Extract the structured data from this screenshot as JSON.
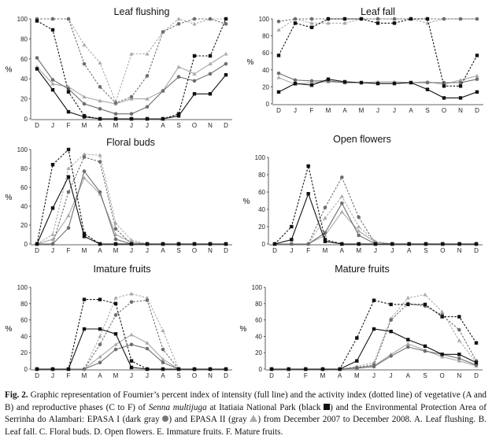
{
  "caption": {
    "fig_label": "Fig. 2.",
    "part1": "Graphic representation of Fournier’s percent index of intensity (full line) and the activity index (dotted line) of vegetative (A and B) and reproductive phases (C to F) of",
    "species": "Senna multijuga",
    "part2": "at Itatiaia National Park (black",
    "part3": ") and the Environmental Protection Area of Serrinha do Alambari: EPASA I (dark gray",
    "part4": ") and EPASA II (gray",
    "part5": ") from December 2007 to December 2008. A. Leaf flushing. B. Leaf fall. C. Floral buds. D. Open flowers. E. Immature fruits. F. Mature fruits."
  },
  "colors": {
    "black_site": "#111111",
    "epasa_i": "#6e6e6e",
    "epasa_ii": "#a8a8a8"
  },
  "chart_data": [
    {
      "type": "line",
      "title": "Leaf flushing",
      "ylabel": "%",
      "ylim": [
        0,
        100
      ],
      "yticks": [
        0,
        20,
        40,
        60,
        80,
        100
      ],
      "categories": [
        "D",
        "J",
        "F",
        "M",
        "A",
        "M",
        "J",
        "J",
        "A",
        "S",
        "O",
        "N",
        "D"
      ],
      "series": [
        {
          "site": "black",
          "kind": "intensity",
          "values": [
            50,
            29,
            7,
            2,
            0,
            0,
            0,
            0,
            0,
            3,
            25,
            25,
            44
          ]
        },
        {
          "site": "black",
          "kind": "activity",
          "values": [
            98,
            89,
            27,
            3,
            0,
            0,
            0,
            0,
            0,
            5,
            63,
            63,
            100
          ]
        },
        {
          "site": "epasa_i",
          "kind": "intensity",
          "values": [
            61,
            39,
            30,
            15,
            10,
            5,
            5,
            12,
            28,
            42,
            38,
            45,
            55
          ]
        },
        {
          "site": "epasa_i",
          "kind": "activity",
          "values": [
            100,
            100,
            100,
            55,
            32,
            16,
            22,
            43,
            87,
            95,
            100,
            100,
            95
          ]
        },
        {
          "site": "epasa_ii",
          "kind": "intensity",
          "values": [
            52,
            35,
            32,
            22,
            18,
            15,
            20,
            20,
            28,
            52,
            45,
            55,
            65
          ]
        },
        {
          "site": "epasa_ii",
          "kind": "activity",
          "values": [
            100,
            100,
            100,
            74,
            56,
            17,
            65,
            65,
            87,
            100,
            95,
            100,
            100
          ]
        }
      ]
    },
    {
      "type": "line",
      "title": "Leaf fall",
      "ylabel": "%",
      "ylim": [
        0,
        100
      ],
      "yticks": [
        0,
        20,
        40,
        60,
        80,
        100
      ],
      "categories": [
        "D",
        "J",
        "F",
        "M",
        "A",
        "M",
        "J",
        "J",
        "A",
        "S",
        "O",
        "N",
        "D"
      ],
      "series": [
        {
          "site": "black",
          "kind": "intensity",
          "values": [
            14,
            24,
            22,
            29,
            26,
            25,
            24,
            24,
            25,
            17,
            7,
            7,
            14
          ]
        },
        {
          "site": "black",
          "kind": "activity",
          "values": [
            57,
            95,
            90,
            100,
            100,
            100,
            95,
            95,
            100,
            100,
            21,
            21,
            57
          ]
        },
        {
          "site": "epasa_i",
          "kind": "intensity",
          "values": [
            36,
            28,
            27,
            27,
            25,
            25,
            24,
            24,
            25,
            25,
            25,
            25,
            29
          ]
        },
        {
          "site": "epasa_i",
          "kind": "activity",
          "values": [
            97,
            100,
            100,
            100,
            100,
            100,
            100,
            100,
            100,
            100,
            100,
            100,
            100
          ]
        },
        {
          "site": "epasa_ii",
          "kind": "intensity",
          "values": [
            31,
            23,
            25,
            26,
            25,
            25,
            26,
            26,
            25,
            26,
            23,
            28,
            33
          ]
        },
        {
          "site": "epasa_ii",
          "kind": "activity",
          "values": [
            87,
            100,
            95,
            95,
            95,
            100,
            100,
            100,
            100,
            95,
            100,
            100,
            100
          ]
        }
      ]
    },
    {
      "type": "line",
      "title": "Floral buds",
      "ylabel": "%",
      "ylim": [
        0,
        100
      ],
      "yticks": [
        0,
        20,
        40,
        60,
        80,
        100
      ],
      "categories": [
        "D",
        "J",
        "F",
        "M",
        "A",
        "M",
        "J",
        "J",
        "A",
        "S",
        "O",
        "N",
        "D"
      ],
      "series": [
        {
          "site": "black",
          "kind": "intensity",
          "values": [
            0,
            38,
            71,
            8,
            0,
            0,
            0,
            0,
            0,
            0,
            0,
            0,
            0
          ]
        },
        {
          "site": "black",
          "kind": "activity",
          "values": [
            0,
            84,
            100,
            11,
            0,
            0,
            0,
            0,
            0,
            0,
            0,
            0,
            0
          ]
        },
        {
          "site": "epasa_i",
          "kind": "intensity",
          "values": [
            0,
            0,
            17,
            77,
            55,
            5,
            0,
            0,
            0,
            0,
            0,
            0,
            0
          ]
        },
        {
          "site": "epasa_i",
          "kind": "activity",
          "values": [
            0,
            0,
            55,
            92,
            87,
            16,
            0,
            0,
            0,
            0,
            0,
            0,
            0
          ]
        },
        {
          "site": "epasa_ii",
          "kind": "intensity",
          "values": [
            0,
            5,
            30,
            70,
            53,
            10,
            2,
            0,
            0,
            0,
            0,
            0,
            0
          ]
        },
        {
          "site": "epasa_ii",
          "kind": "activity",
          "values": [
            0,
            10,
            80,
            95,
            94,
            22,
            4,
            0,
            0,
            0,
            0,
            0,
            0
          ]
        }
      ]
    },
    {
      "type": "line",
      "title": "Open flowers",
      "ylabel": "%",
      "ylim": [
        0,
        100
      ],
      "yticks": [
        0,
        20,
        40,
        60,
        80,
        100
      ],
      "categories": [
        "D",
        "J",
        "F",
        "M",
        "A",
        "M",
        "J",
        "J",
        "A",
        "S",
        "O",
        "N",
        "D"
      ],
      "series": [
        {
          "site": "black",
          "kind": "intensity",
          "values": [
            0,
            5,
            58,
            3,
            0,
            0,
            0,
            0,
            0,
            0,
            0,
            0,
            0
          ]
        },
        {
          "site": "black",
          "kind": "activity",
          "values": [
            0,
            20,
            90,
            5,
            0,
            0,
            0,
            0,
            0,
            0,
            0,
            0,
            0
          ]
        },
        {
          "site": "epasa_i",
          "kind": "intensity",
          "values": [
            0,
            0,
            0,
            13,
            47,
            10,
            0,
            0,
            0,
            0,
            0,
            0,
            0
          ]
        },
        {
          "site": "epasa_i",
          "kind": "activity",
          "values": [
            0,
            0,
            0,
            42,
            77,
            31,
            0,
            0,
            0,
            0,
            0,
            0,
            0
          ]
        },
        {
          "site": "epasa_ii",
          "kind": "intensity",
          "values": [
            0,
            0,
            0,
            10,
            37,
            15,
            2,
            0,
            0,
            0,
            0,
            0,
            0
          ]
        },
        {
          "site": "epasa_ii",
          "kind": "activity",
          "values": [
            0,
            0,
            0,
            30,
            55,
            20,
            3,
            0,
            0,
            0,
            0,
            0,
            0
          ]
        }
      ]
    },
    {
      "type": "line",
      "title": "Imature fruits",
      "ylabel": "%",
      "ylim": [
        0,
        100
      ],
      "yticks": [
        0,
        20,
        40,
        60,
        80,
        100
      ],
      "categories": [
        "D",
        "J",
        "F",
        "M",
        "A",
        "M",
        "J",
        "J",
        "A",
        "S",
        "O",
        "N",
        "D"
      ],
      "series": [
        {
          "site": "black",
          "kind": "intensity",
          "values": [
            0,
            0,
            0,
            49,
            49,
            43,
            2,
            0,
            0,
            0,
            0,
            0,
            0
          ]
        },
        {
          "site": "black",
          "kind": "activity",
          "values": [
            0,
            0,
            0,
            85,
            85,
            80,
            10,
            0,
            0,
            0,
            0,
            0,
            0
          ]
        },
        {
          "site": "epasa_i",
          "kind": "intensity",
          "values": [
            0,
            0,
            0,
            0,
            8,
            24,
            30,
            25,
            8,
            0,
            0,
            0,
            0
          ]
        },
        {
          "site": "epasa_i",
          "kind": "activity",
          "values": [
            0,
            0,
            0,
            0,
            30,
            66,
            82,
            84,
            24,
            0,
            0,
            0,
            0
          ]
        },
        {
          "site": "epasa_ii",
          "kind": "intensity",
          "values": [
            0,
            0,
            0,
            0,
            15,
            30,
            42,
            32,
            12,
            0,
            0,
            0,
            0
          ]
        },
        {
          "site": "epasa_ii",
          "kind": "activity",
          "values": [
            0,
            0,
            0,
            0,
            40,
            87,
            92,
            87,
            47,
            0,
            0,
            0,
            0
          ]
        }
      ]
    },
    {
      "type": "line",
      "title": "Mature fruits",
      "ylabel": "%",
      "ylim": [
        0,
        100
      ],
      "yticks": [
        0,
        20,
        40,
        60,
        80,
        100
      ],
      "categories": [
        "D",
        "J",
        "F",
        "M",
        "A",
        "M",
        "J",
        "J",
        "A",
        "S",
        "O",
        "N",
        "D"
      ],
      "series": [
        {
          "site": "black",
          "kind": "intensity",
          "values": [
            0,
            0,
            0,
            0,
            0,
            10,
            49,
            46,
            36,
            28,
            18,
            18,
            8
          ]
        },
        {
          "site": "black",
          "kind": "activity",
          "values": [
            0,
            0,
            0,
            0,
            0,
            38,
            84,
            79,
            79,
            79,
            64,
            64,
            32
          ]
        },
        {
          "site": "epasa_i",
          "kind": "intensity",
          "values": [
            0,
            0,
            0,
            0,
            0,
            1,
            3,
            16,
            27,
            22,
            18,
            13,
            5
          ]
        },
        {
          "site": "epasa_i",
          "kind": "activity",
          "values": [
            0,
            0,
            0,
            0,
            0,
            2,
            5,
            60,
            80,
            77,
            66,
            48,
            10
          ]
        },
        {
          "site": "epasa_ii",
          "kind": "intensity",
          "values": [
            0,
            0,
            0,
            0,
            0,
            2,
            4,
            18,
            31,
            23,
            15,
            10,
            4
          ]
        },
        {
          "site": "epasa_ii",
          "kind": "activity",
          "values": [
            0,
            0,
            0,
            0,
            0,
            3,
            8,
            62,
            87,
            91,
            70,
            35,
            8
          ]
        }
      ]
    }
  ]
}
